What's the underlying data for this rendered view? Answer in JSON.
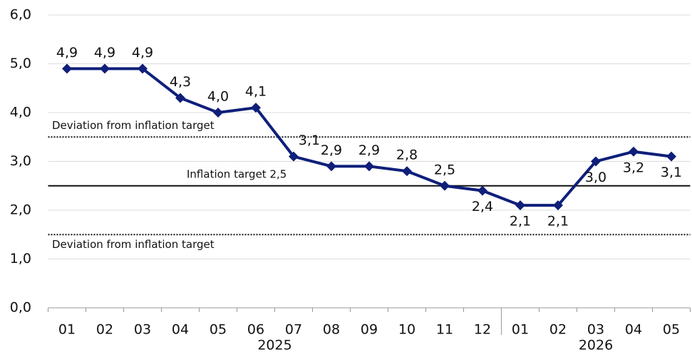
{
  "chart_data": {
    "type": "line",
    "categories": [
      "01",
      "02",
      "03",
      "04",
      "05",
      "06",
      "07",
      "08",
      "09",
      "10",
      "11",
      "12",
      "01",
      "02",
      "03",
      "04",
      "05"
    ],
    "x_groups": [
      {
        "label": "2025",
        "count": 12
      },
      {
        "label": "2026",
        "count": 5
      }
    ],
    "series": [
      {
        "name": "Inflation",
        "color": "#0f1f7a",
        "values": [
          4.9,
          4.9,
          4.9,
          4.3,
          4.0,
          4.1,
          3.1,
          2.9,
          2.9,
          2.8,
          2.5,
          2.4,
          2.1,
          2.1,
          3.0,
          3.2,
          3.1
        ],
        "value_labels": [
          "4,9",
          "4,9",
          "4,9",
          "4,3",
          "4,0",
          "4,1",
          "3,1",
          "2,9",
          "2,9",
          "2,8",
          "2,5",
          "2,4",
          "2,1",
          "2,1",
          "3,0",
          "3,2",
          "3,1"
        ]
      }
    ],
    "reference_lines": [
      {
        "value": 3.5,
        "label": "Deviation from inflation target",
        "style": "dotted"
      },
      {
        "value": 2.5,
        "label": "Inflation target 2,5",
        "style": "solid"
      },
      {
        "value": 1.5,
        "label": "Deviation from inflation target",
        "style": "dotted"
      }
    ],
    "ylim": [
      0,
      6
    ],
    "yticks": [
      {
        "value": 0,
        "label": "0,0"
      },
      {
        "value": 1,
        "label": "1,0"
      },
      {
        "value": 2,
        "label": "2,0"
      },
      {
        "value": 3,
        "label": "3,0"
      },
      {
        "value": 4,
        "label": "4,0"
      },
      {
        "value": 5,
        "label": "5,0"
      },
      {
        "value": 6,
        "label": "6,0"
      }
    ],
    "grid": true
  }
}
